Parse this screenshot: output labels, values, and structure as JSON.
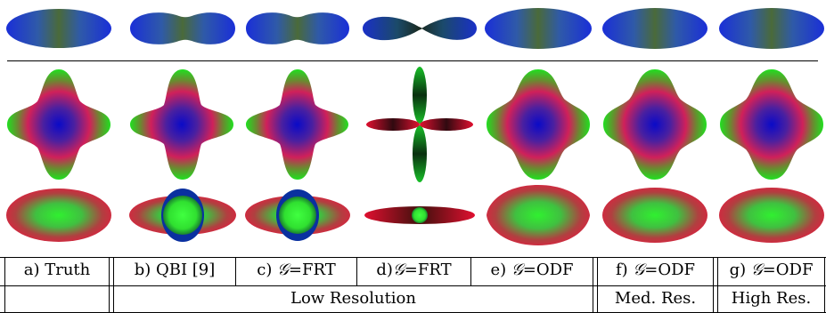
{
  "figure": {
    "columns": [
      {
        "label": "a) Truth",
        "group": ""
      },
      {
        "label": "b) QBI [9]",
        "group": "Low Resolution"
      },
      {
        "label_prefix": "c) ",
        "symbol": "𝒢",
        "label_suffix": "=FRT",
        "group": "Low Resolution"
      },
      {
        "label_prefix": "d)",
        "symbol": "𝒢",
        "label_suffix": "=FRT",
        "group": "Low Resolution"
      },
      {
        "label_prefix": "e) ",
        "symbol": "𝒢",
        "label_suffix": "=ODF",
        "group": "Low Resolution"
      },
      {
        "label_prefix": "f) ",
        "symbol": "𝒢",
        "label_suffix": "=ODF",
        "group": "Med. Res."
      },
      {
        "label_prefix": "g) ",
        "symbol": "𝒢",
        "label_suffix": "=ODF",
        "group": "High Res."
      }
    ],
    "groups": [
      "Low Resolution",
      "Med. Res.",
      "High Res."
    ],
    "rows": [
      {
        "name": "row-1",
        "shape": "elongated-horizontal"
      },
      {
        "name": "row-2",
        "shape": "four-lobed-cross"
      },
      {
        "name": "row-3",
        "shape": "elongated-with-core"
      }
    ]
  }
}
